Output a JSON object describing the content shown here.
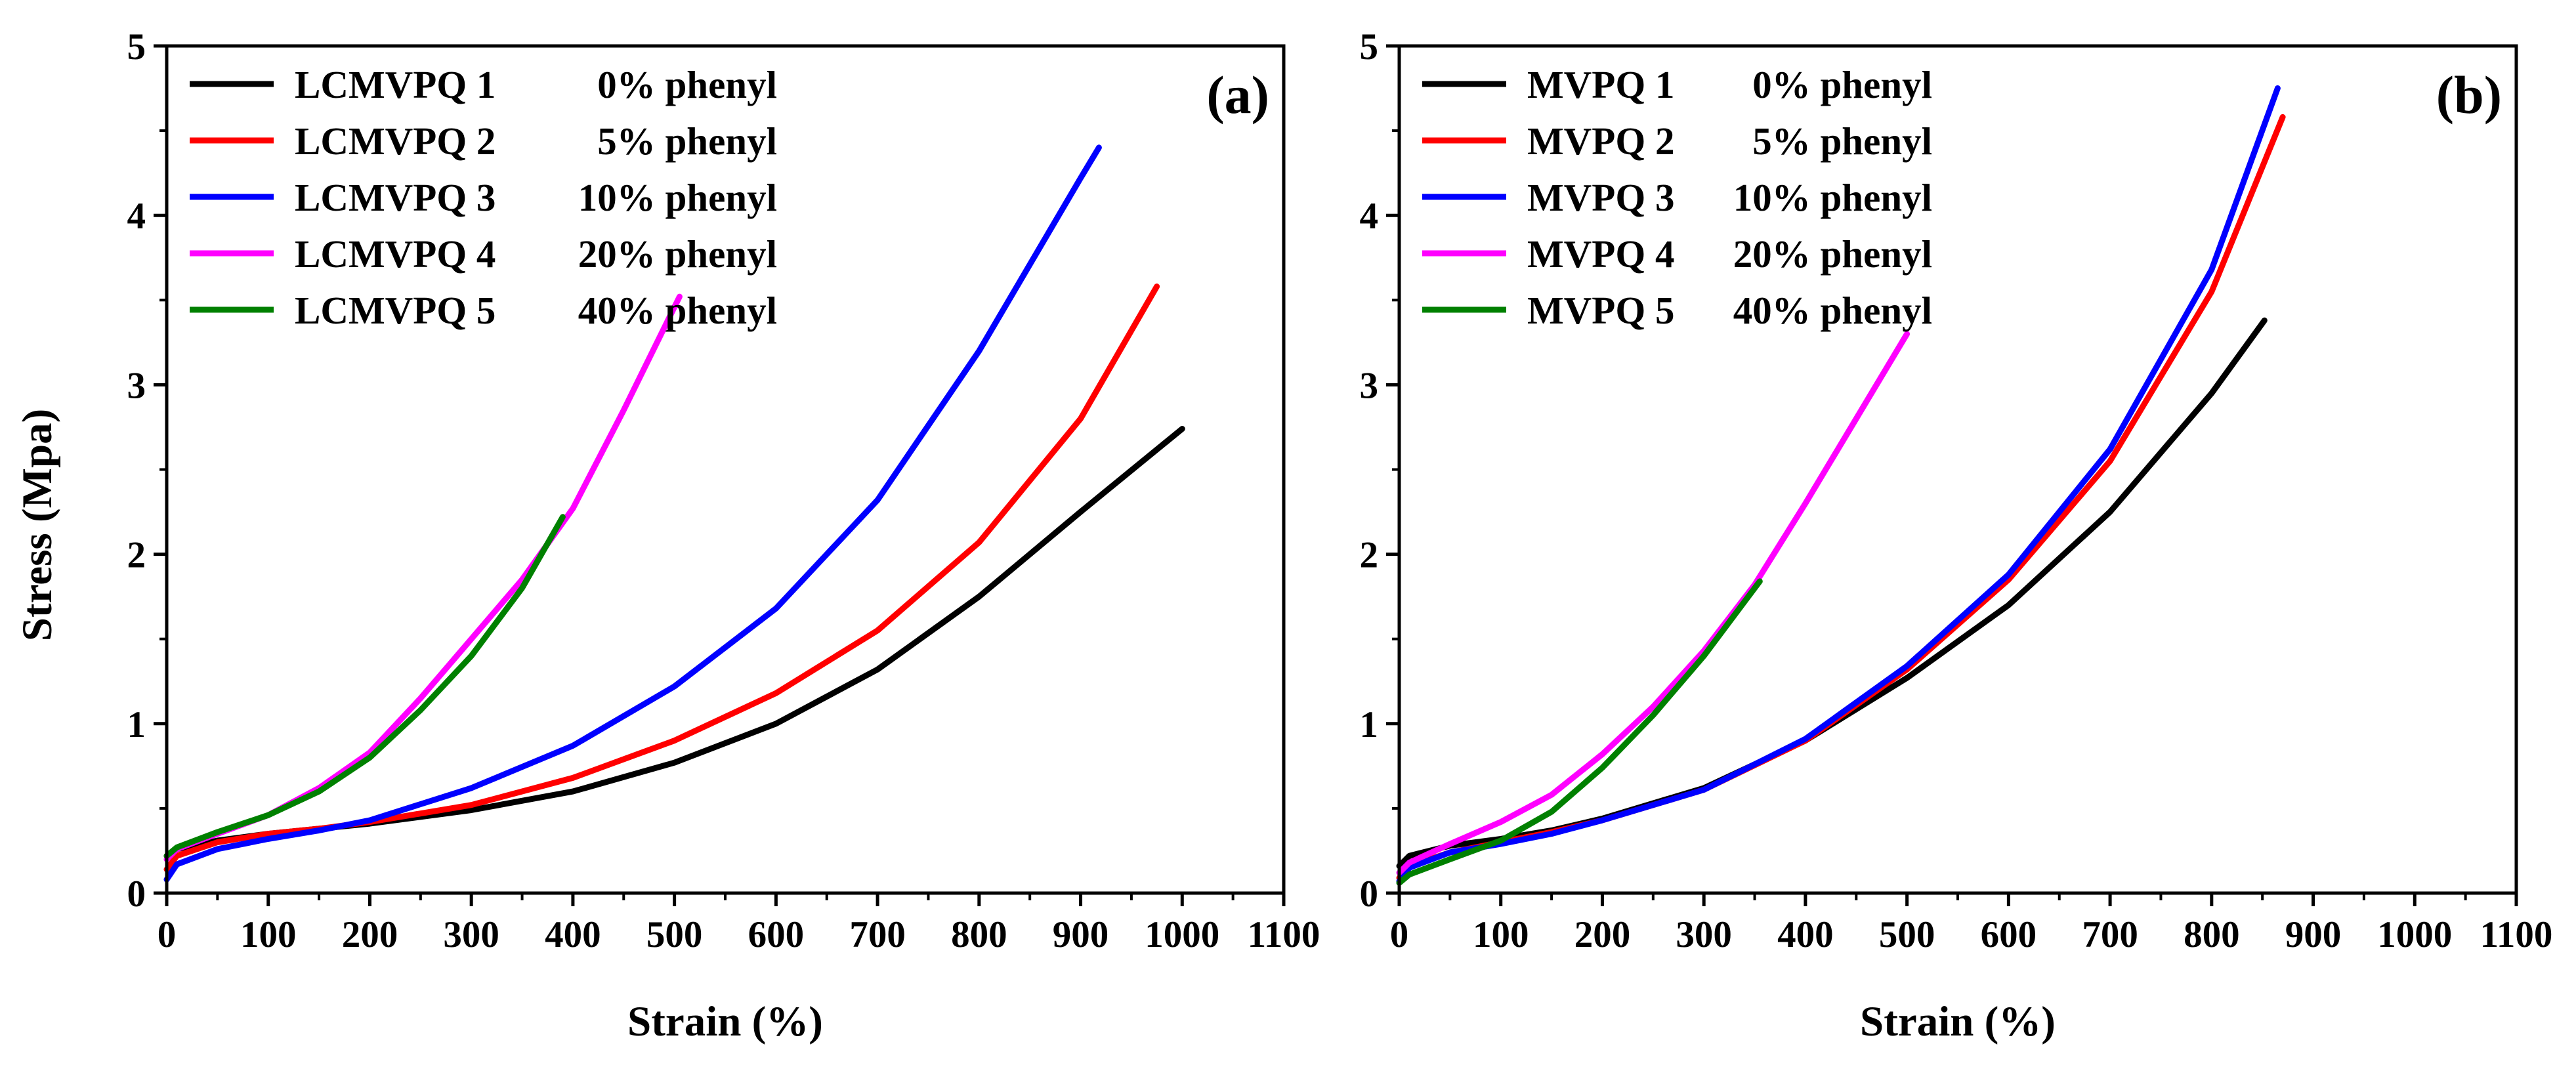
{
  "figure": {
    "ylabel": "Stress (Mpa)"
  },
  "chart_data": [
    {
      "type": "line",
      "panel": "(a)",
      "xlabel": "Strain (%)",
      "ylabel": "Stress (Mpa)",
      "xlim": [
        0,
        1100
      ],
      "ylim": [
        0,
        5
      ],
      "xticks": [
        "0",
        "100",
        "200",
        "300",
        "400",
        "500",
        "600",
        "700",
        "800",
        "900",
        "1000",
        "1100"
      ],
      "yticks": [
        "0",
        "1",
        "2",
        "3",
        "4",
        "5"
      ],
      "legend_position": "top-left",
      "series": [
        {
          "name": "LCMVPQ 1",
          "pct": "0% phenyl",
          "color": "#000000",
          "x": [
            0,
            10,
            50,
            100,
            150,
            200,
            300,
            400,
            500,
            600,
            700,
            800,
            900,
            1000
          ],
          "y": [
            0.22,
            0.26,
            0.31,
            0.35,
            0.38,
            0.41,
            0.49,
            0.6,
            0.77,
            1.0,
            1.32,
            1.75,
            2.25,
            2.74
          ]
        },
        {
          "name": "LCMVPQ 2",
          "pct": "5% phenyl",
          "color": "#ff0000",
          "x": [
            0,
            10,
            50,
            100,
            150,
            200,
            300,
            400,
            500,
            600,
            700,
            800,
            900,
            975
          ],
          "y": [
            0.14,
            0.22,
            0.3,
            0.35,
            0.38,
            0.42,
            0.52,
            0.68,
            0.9,
            1.18,
            1.55,
            2.07,
            2.8,
            3.58
          ]
        },
        {
          "name": "LCMVPQ 3",
          "pct": "10% phenyl",
          "color": "#0000ff",
          "x": [
            0,
            10,
            50,
            100,
            150,
            200,
            300,
            400,
            500,
            600,
            700,
            800,
            900,
            918
          ],
          "y": [
            0.08,
            0.17,
            0.26,
            0.32,
            0.37,
            0.43,
            0.62,
            0.87,
            1.22,
            1.68,
            2.32,
            3.2,
            4.22,
            4.4
          ]
        },
        {
          "name": "LCMVPQ 4",
          "pct": "20% phenyl",
          "color": "#ff00ff",
          "x": [
            0,
            10,
            50,
            100,
            150,
            200,
            250,
            300,
            350,
            400,
            450,
            505
          ],
          "y": [
            0.2,
            0.26,
            0.35,
            0.46,
            0.62,
            0.83,
            1.15,
            1.5,
            1.85,
            2.27,
            2.85,
            3.52
          ]
        },
        {
          "name": "LCMVPQ 5",
          "pct": "40% phenyl",
          "color": "#008000",
          "x": [
            0,
            10,
            50,
            100,
            150,
            200,
            250,
            300,
            350,
            390
          ],
          "y": [
            0.22,
            0.27,
            0.36,
            0.46,
            0.6,
            0.8,
            1.08,
            1.4,
            1.8,
            2.22
          ]
        }
      ]
    },
    {
      "type": "line",
      "panel": "(b)",
      "xlabel": "Strain (%)",
      "ylabel": "Stress (Mpa)",
      "xlim": [
        0,
        1100
      ],
      "ylim": [
        0,
        5
      ],
      "xticks": [
        "0",
        "100",
        "200",
        "300",
        "400",
        "500",
        "600",
        "700",
        "800",
        "900",
        "1000",
        "1100"
      ],
      "yticks": [
        "0",
        "1",
        "2",
        "3",
        "4",
        "5"
      ],
      "legend_position": "top-left",
      "series": [
        {
          "name": "MVPQ 1",
          "pct": "0% phenyl",
          "color": "#000000",
          "x": [
            0,
            10,
            50,
            100,
            150,
            200,
            300,
            400,
            500,
            600,
            700,
            800,
            852
          ],
          "y": [
            0.16,
            0.22,
            0.28,
            0.32,
            0.37,
            0.44,
            0.62,
            0.9,
            1.27,
            1.7,
            2.25,
            2.95,
            3.38
          ]
        },
        {
          "name": "MVPQ 2",
          "pct": "5% phenyl",
          "color": "#ff0000",
          "x": [
            0,
            10,
            50,
            100,
            150,
            200,
            300,
            400,
            500,
            600,
            700,
            800,
            870
          ],
          "y": [
            0.09,
            0.16,
            0.24,
            0.3,
            0.36,
            0.43,
            0.61,
            0.9,
            1.32,
            1.85,
            2.55,
            3.55,
            4.58
          ]
        },
        {
          "name": "MVPQ 3",
          "pct": "10% phenyl",
          "color": "#0000ff",
          "x": [
            0,
            10,
            50,
            100,
            150,
            200,
            300,
            400,
            500,
            600,
            700,
            800,
            865
          ],
          "y": [
            0.07,
            0.15,
            0.24,
            0.29,
            0.35,
            0.43,
            0.61,
            0.91,
            1.34,
            1.88,
            2.62,
            3.68,
            4.75
          ]
        },
        {
          "name": "MVPQ 4",
          "pct": "20% phenyl",
          "color": "#ff00ff",
          "x": [
            0,
            10,
            50,
            100,
            150,
            200,
            250,
            300,
            350,
            400,
            450,
            500
          ],
          "y": [
            0.12,
            0.18,
            0.29,
            0.42,
            0.58,
            0.82,
            1.1,
            1.43,
            1.82,
            2.3,
            2.8,
            3.3
          ]
        },
        {
          "name": "MVPQ 5",
          "pct": "40% phenyl",
          "color": "#008000",
          "x": [
            0,
            10,
            50,
            100,
            150,
            200,
            250,
            300,
            355
          ],
          "y": [
            0.06,
            0.11,
            0.2,
            0.31,
            0.48,
            0.74,
            1.05,
            1.4,
            1.84
          ]
        }
      ]
    }
  ]
}
